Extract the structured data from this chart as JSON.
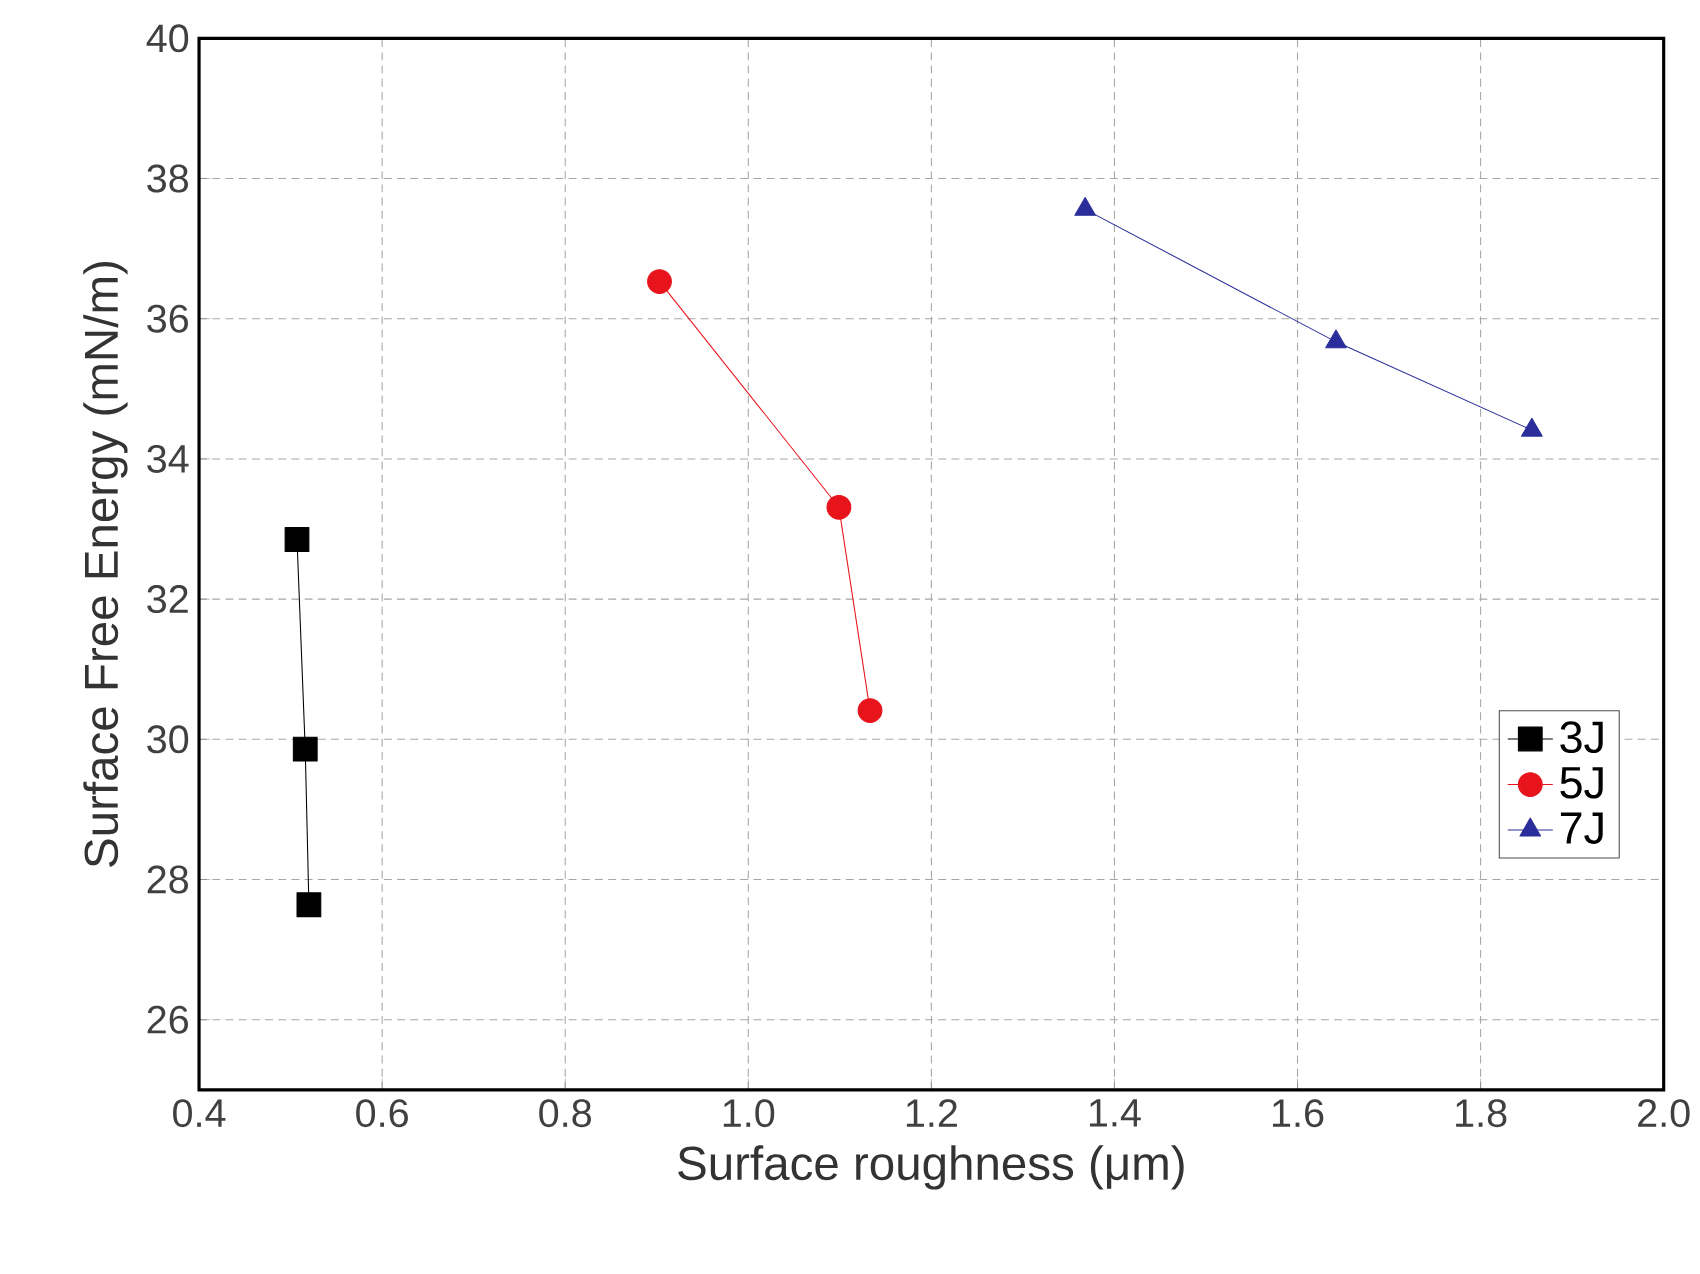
{
  "chart_data": {
    "type": "line",
    "xlabel": "Surface roughness (μm)",
    "ylabel": "Surface Free Energy (mN/m)",
    "xlim": [
      0.4,
      2.0
    ],
    "ylim": [
      25,
      40
    ],
    "xticks": [
      {
        "value": 0.4,
        "label": "0.4"
      },
      {
        "value": 0.6,
        "label": "0.6"
      },
      {
        "value": 0.8,
        "label": "0.8"
      },
      {
        "value": 1.0,
        "label": "1.0"
      },
      {
        "value": 1.2,
        "label": "1.2"
      },
      {
        "value": 1.4,
        "label": "1.4"
      },
      {
        "value": 1.6,
        "label": "1.6"
      },
      {
        "value": 1.8,
        "label": "1.8"
      },
      {
        "value": 2.0,
        "label": "2.0"
      }
    ],
    "yticks": [
      26,
      28,
      30,
      32,
      34,
      36,
      38,
      40
    ],
    "grid": true,
    "legend": "bottom right",
    "line_style": "solid",
    "series": [
      {
        "name": "3J",
        "color": "#000000",
        "marker": "square",
        "x": [
          0.507,
          0.516,
          0.52
        ],
        "values": [
          32.85,
          29.86,
          27.64
        ]
      },
      {
        "name": "5J",
        "color": "#e8141c",
        "marker": "circle",
        "x": [
          0.903,
          1.099,
          1.133
        ],
        "values": [
          36.53,
          33.31,
          30.41
        ]
      },
      {
        "name": "7J",
        "color": "#2b2e9a",
        "marker": "triangle",
        "x": [
          1.368,
          1.642,
          1.856
        ],
        "values": [
          37.56,
          35.67,
          34.41
        ]
      }
    ]
  }
}
